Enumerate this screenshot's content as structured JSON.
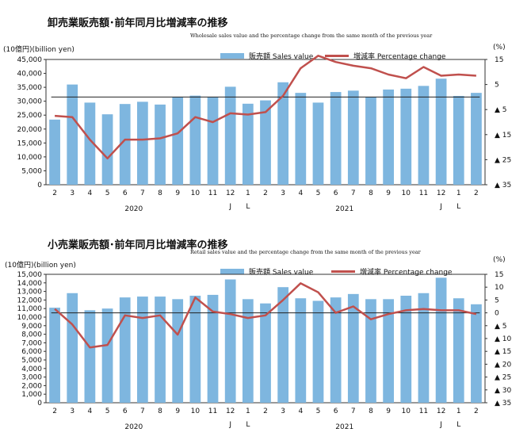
{
  "chart_data": [
    {
      "type": "bar",
      "title": "卸売業販売額･前年同月比増減率の推移",
      "subtitle": "Wholesale sales value and the percentage change from the same month of the previous year",
      "ylabel_left": "(10億円)(billion yen)",
      "ylabel_right": "(%)",
      "categories": [
        "2",
        "3",
        "4",
        "5",
        "6",
        "7",
        "8",
        "9",
        "10",
        "11",
        "12",
        "1",
        "2",
        "3",
        "4",
        "5",
        "6",
        "7",
        "8",
        "9",
        "10",
        "11",
        "12",
        "1",
        "2"
      ],
      "year_labels": [
        {
          "label": "2020",
          "at_index": 4.5
        },
        {
          "label": "2021",
          "at_index": 16.5
        }
      ],
      "markers": [
        {
          "label": "J",
          "at_index": 10
        },
        {
          "label": "L",
          "at_index": 11
        },
        {
          "label": "J",
          "at_index": 22
        },
        {
          "label": "L",
          "at_index": 23
        }
      ],
      "ylim_left": [
        0,
        45000
      ],
      "yticks_left": [
        "0",
        "5,000",
        "10,000",
        "15,000",
        "20,000",
        "25,000",
        "30,000",
        "35,000",
        "40,000",
        "45,000"
      ],
      "ylim_right": [
        -35,
        15
      ],
      "yticks_right": [
        {
          "value": 15,
          "label": "15"
        },
        {
          "value": 5,
          "label": "5"
        },
        {
          "value": -5,
          "label": "▲ 5"
        },
        {
          "value": -15,
          "label": "▲ 15"
        },
        {
          "value": -25,
          "label": "▲ 25"
        },
        {
          "value": -35,
          "label": "▲ 35"
        }
      ],
      "reference_value_right": 0,
      "series": [
        {
          "name": "販売額 Sales value",
          "axis": "left",
          "type": "bar",
          "color": "#7eb6df",
          "values": [
            23400,
            36000,
            29500,
            25300,
            29000,
            29800,
            28800,
            31500,
            32000,
            31600,
            35200,
            29100,
            30300,
            36800,
            33000,
            29500,
            33300,
            33800,
            31500,
            34200,
            34500,
            35500,
            38100,
            31900,
            33000
          ]
        },
        {
          "name": "増減率 Percentage change",
          "axis": "right",
          "type": "line",
          "color": "#c0504d",
          "values": [
            -7.5,
            -8,
            -17,
            -24.5,
            -17,
            -17,
            -16.5,
            -14.5,
            -8,
            -10,
            -6.5,
            -7,
            -6,
            0.5,
            11.5,
            16.5,
            14,
            12.5,
            11.5,
            9,
            7.5,
            12,
            8.5,
            9,
            8.5
          ]
        }
      ]
    },
    {
      "type": "bar",
      "title": "小売業販売額･前年同月比増減率の推移",
      "subtitle": "Retail sales value and the percentage change from the same month of the previous year",
      "ylabel_left": "(10億円)(billion yen)",
      "ylabel_right": "(%)",
      "categories": [
        "2",
        "3",
        "4",
        "5",
        "6",
        "7",
        "8",
        "9",
        "10",
        "11",
        "12",
        "1",
        "2",
        "3",
        "4",
        "5",
        "6",
        "7",
        "8",
        "9",
        "10",
        "11",
        "12",
        "1",
        "2"
      ],
      "year_labels": [
        {
          "label": "2020",
          "at_index": 4.5
        },
        {
          "label": "2021",
          "at_index": 16.5
        }
      ],
      "markers": [
        {
          "label": "J",
          "at_index": 10
        },
        {
          "label": "L",
          "at_index": 11
        },
        {
          "label": "J",
          "at_index": 22
        },
        {
          "label": "L",
          "at_index": 23
        }
      ],
      "ylim_left": [
        0,
        15000
      ],
      "yticks_left": [
        "0",
        "1,000",
        "2,000",
        "3,000",
        "4,000",
        "5,000",
        "6,000",
        "7,000",
        "8,000",
        "9,000",
        "10,000",
        "11,000",
        "12,000",
        "13,000",
        "14,000",
        "15,000"
      ],
      "ylim_right": [
        -35,
        15
      ],
      "yticks_right": [
        {
          "value": 15,
          "label": "15"
        },
        {
          "value": 10,
          "label": "10"
        },
        {
          "value": 5,
          "label": "5"
        },
        {
          "value": 0,
          "label": "0"
        },
        {
          "value": -5,
          "label": "▲ 5"
        },
        {
          "value": -10,
          "label": "▲ 10"
        },
        {
          "value": -15,
          "label": "▲ 15"
        },
        {
          "value": -20,
          "label": "▲ 20"
        },
        {
          "value": -25,
          "label": "▲ 25"
        },
        {
          "value": -30,
          "label": "▲ 30"
        },
        {
          "value": -35,
          "label": "▲ 35"
        }
      ],
      "reference_value_right": 0,
      "series": [
        {
          "name": "販売額 Sales value",
          "axis": "left",
          "type": "bar",
          "color": "#7eb6df",
          "values": [
            11100,
            12800,
            10800,
            11000,
            12300,
            12400,
            12400,
            12100,
            12500,
            12600,
            14400,
            12100,
            11600,
            13500,
            12200,
            11900,
            12300,
            12700,
            12100,
            12100,
            12500,
            12800,
            14600,
            12200,
            11500
          ]
        },
        {
          "name": "増減率 Percentage change",
          "axis": "right",
          "type": "line",
          "color": "#c0504d",
          "values": [
            1.5,
            -4.5,
            -13.5,
            -12.5,
            -1,
            -2,
            -1,
            -8.5,
            6,
            0.5,
            -0.5,
            -2,
            -1,
            5,
            11.5,
            8,
            0,
            2.5,
            -2.5,
            -0.5,
            1,
            1.5,
            1,
            1,
            -0.5
          ]
        }
      ]
    }
  ]
}
